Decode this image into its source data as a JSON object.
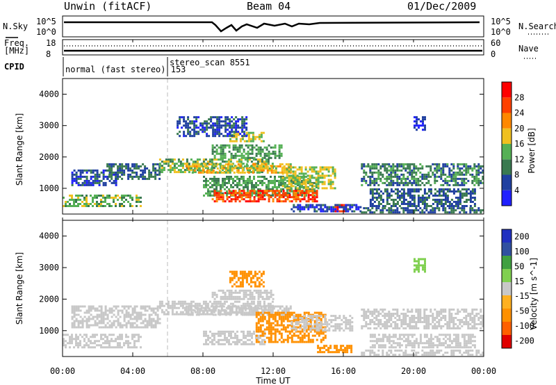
{
  "header": {
    "station": "Unwin (fitACF)",
    "beam": "Beam 04",
    "date": "01/Dec/2009"
  },
  "nsky_panel": {
    "left_label": "N.Sky",
    "right_label": "N.Search",
    "left_ticks": [
      "10^5",
      "10^0"
    ],
    "right_ticks": [
      "10^5",
      "10^0"
    ]
  },
  "freq_panel": {
    "left_label_1": "Freq.",
    "left_label_2": "[MHz]",
    "right_label": "Nave",
    "left_ticks": [
      "18",
      "8"
    ],
    "right_ticks": [
      "60",
      "0"
    ]
  },
  "cpid_panel": {
    "label": "CPID",
    "modes": [
      {
        "name": "normal (fast stereo) 153",
        "start_hour": 0
      },
      {
        "name": "stereo_scan 8551",
        "start_hour": 6.0
      }
    ]
  },
  "x_axis": {
    "label": "Time UT",
    "ticks": [
      "00:00",
      "04:00",
      "08:00",
      "12:00",
      "16:00",
      "20:00",
      "00:00"
    ]
  },
  "colors": {
    "power": [
      "#2020ff",
      "#2040a0",
      "#3a7a50",
      "#55b055",
      "#f0c020",
      "#ff8800",
      "#ff4000",
      "#ff0000"
    ],
    "velocity": [
      "#e00000",
      "#ff6000",
      "#ff9000",
      "#ffb020",
      "#c8c8c8",
      "#80d050",
      "#40a040",
      "#3050a0",
      "#2030c0"
    ]
  },
  "chart_data": [
    {
      "type": "heatmap",
      "name": "power",
      "ylabel": "Slant Range [km]",
      "xlabel": "Time UT",
      "xlim": [
        0,
        24
      ],
      "ylim": [
        180,
        4500
      ],
      "yticks": [
        1000,
        2000,
        3000,
        4000
      ],
      "colorbar": {
        "title": "Power [dB]",
        "ticks": [
          "4",
          "8",
          "12",
          "16",
          "20",
          "24",
          "28"
        ],
        "range": [
          0,
          32
        ]
      },
      "regions": [
        {
          "t0": 0.0,
          "t1": 4.5,
          "r0": 450,
          "r1": 800,
          "value": 14
        },
        {
          "t0": 0.5,
          "t1": 3.0,
          "r0": 1100,
          "r1": 1600,
          "value": 6
        },
        {
          "t0": 2.5,
          "t1": 5.5,
          "r0": 1300,
          "r1": 1800,
          "value": 8
        },
        {
          "t0": 5.5,
          "t1": 12.0,
          "r0": 1550,
          "r1": 1950,
          "value": 14
        },
        {
          "t0": 7.0,
          "t1": 13.0,
          "r0": 1500,
          "r1": 1800,
          "value": 18
        },
        {
          "t0": 8.5,
          "t1": 12.5,
          "r0": 2000,
          "r1": 2400,
          "value": 12
        },
        {
          "t0": 9.5,
          "t1": 11.5,
          "r0": 2500,
          "r1": 2800,
          "value": 16
        },
        {
          "t0": 6.5,
          "t1": 10.5,
          "r0": 2700,
          "r1": 3300,
          "value": 6
        },
        {
          "t0": 8.0,
          "t1": 14.5,
          "r0": 800,
          "r1": 1400,
          "value": 12
        },
        {
          "t0": 8.5,
          "t1": 14.5,
          "r0": 600,
          "r1": 950,
          "value": 26
        },
        {
          "t0": 12.5,
          "t1": 15.5,
          "r0": 1000,
          "r1": 1700,
          "value": 16
        },
        {
          "t0": 15.5,
          "t1": 16.2,
          "r0": 300,
          "r1": 500,
          "value": 28
        },
        {
          "t0": 13.0,
          "t1": 17.0,
          "r0": 250,
          "r1": 500,
          "value": 5
        },
        {
          "t0": 17.0,
          "t1": 24.0,
          "r0": 1100,
          "r1": 1800,
          "value": 10
        },
        {
          "t0": 17.5,
          "t1": 23.5,
          "r0": 450,
          "r1": 1000,
          "value": 8
        },
        {
          "t0": 17.0,
          "t1": 24.0,
          "r0": 230,
          "r1": 400,
          "value": 8
        },
        {
          "t0": 20.0,
          "t1": 20.7,
          "r0": 2900,
          "r1": 3300,
          "value": 4
        }
      ]
    },
    {
      "type": "heatmap",
      "name": "velocity",
      "ylabel": "Slant Range [km]",
      "xlabel": "Time UT",
      "xlim": [
        0,
        24
      ],
      "ylim": [
        180,
        4500
      ],
      "yticks": [
        1000,
        2000,
        3000,
        4000
      ],
      "colorbar": {
        "title": "Velocity [m s^-1]",
        "ticks": [
          "200",
          "100",
          "50",
          "15",
          "-15",
          "-50",
          "-100",
          "-200"
        ],
        "range": [
          -250,
          250
        ]
      },
      "regions": [
        {
          "t0": 0.0,
          "t1": 4.5,
          "r0": 450,
          "r1": 900,
          "value": 0
        },
        {
          "t0": 0.5,
          "t1": 5.5,
          "r0": 1100,
          "r1": 1800,
          "value": 0
        },
        {
          "t0": 5.5,
          "t1": 12.0,
          "r0": 1500,
          "r1": 1950,
          "value": 0
        },
        {
          "t0": 7.0,
          "t1": 13.0,
          "r0": 1500,
          "r1": 1800,
          "value": 0
        },
        {
          "t0": 9.5,
          "t1": 11.5,
          "r0": 2400,
          "r1": 2900,
          "value": -80
        },
        {
          "t0": 8.5,
          "t1": 12.0,
          "r0": 2000,
          "r1": 2300,
          "value": 0
        },
        {
          "t0": 8.0,
          "t1": 11.5,
          "r0": 600,
          "r1": 1000,
          "value": 0
        },
        {
          "t0": 11.0,
          "t1": 15.0,
          "r0": 650,
          "r1": 1600,
          "value": -80
        },
        {
          "t0": 14.5,
          "t1": 16.5,
          "r0": 300,
          "r1": 550,
          "value": -80
        },
        {
          "t0": 13.0,
          "t1": 16.5,
          "r0": 1000,
          "r1": 1500,
          "value": 0
        },
        {
          "t0": 17.0,
          "t1": 24.0,
          "r0": 1100,
          "r1": 1700,
          "value": 0
        },
        {
          "t0": 17.5,
          "t1": 23.5,
          "r0": 450,
          "r1": 900,
          "value": 0
        },
        {
          "t0": 17.0,
          "t1": 24.0,
          "r0": 230,
          "r1": 400,
          "value": 0
        },
        {
          "t0": 20.0,
          "t1": 20.7,
          "r0": 2900,
          "r1": 3300,
          "value": 30
        }
      ]
    }
  ]
}
